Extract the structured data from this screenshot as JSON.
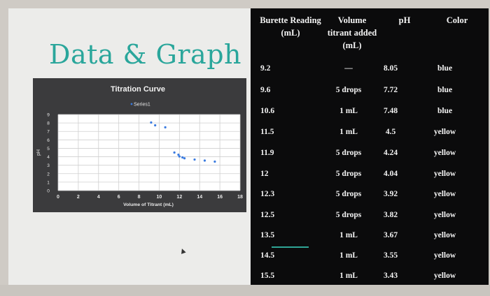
{
  "slide": {
    "title": "Data & Graph"
  },
  "table": {
    "headers": {
      "reading": [
        "Burette Reading",
        "(mL)"
      ],
      "volume": [
        "Volume",
        "titrant added",
        "(mL)"
      ],
      "ph": [
        "pH"
      ],
      "color": [
        "Color"
      ]
    },
    "rows": [
      {
        "reading": "9.2",
        "volume": "—",
        "ph": "8.05",
        "color": "blue"
      },
      {
        "reading": "9.6",
        "volume": "5 drops",
        "ph": "7.72",
        "color": "blue"
      },
      {
        "reading": "10.6",
        "volume": "1 mL",
        "ph": "7.48",
        "color": "blue"
      },
      {
        "reading": "11.5",
        "volume": "1 mL",
        "ph": "4.5",
        "color": "yellow"
      },
      {
        "reading": "11.9",
        "volume": "5 drops",
        "ph": "4.24",
        "color": "yellow"
      },
      {
        "reading": "12",
        "volume": "5 drops",
        "ph": "4.04",
        "color": "yellow"
      },
      {
        "reading": "12.3",
        "volume": "5 drops",
        "ph": "3.92",
        "color": "yellow"
      },
      {
        "reading": "12.5",
        "volume": "5 drops",
        "ph": "3.82",
        "color": "yellow"
      },
      {
        "reading": "13.5",
        "volume": "1 mL",
        "ph": "3.67",
        "color": "yellow"
      },
      {
        "reading": "14.5",
        "volume": "1 mL",
        "ph": "3.55",
        "color": "yellow"
      },
      {
        "reading": "15.5",
        "volume": "1 mL",
        "ph": "3.43",
        "color": "yellow"
      }
    ]
  },
  "chart_data": {
    "type": "scatter",
    "title": "Titration Curve",
    "xlabel": "Volume of Titrant (mL)",
    "ylabel": "pH",
    "xlim": [
      0,
      18
    ],
    "ylim": [
      0,
      9
    ],
    "xticks": [
      "0",
      "2",
      "4",
      "6",
      "8",
      "10",
      "12",
      "14",
      "16",
      "18"
    ],
    "yticks": [
      "0",
      "1",
      "2",
      "3",
      "4",
      "5",
      "6",
      "7",
      "8",
      "9"
    ],
    "grid": true,
    "legend_position": "top",
    "series": [
      {
        "name": "Series1",
        "color": "#3a7be0",
        "points": [
          [
            9.2,
            8.05
          ],
          [
            9.6,
            7.72
          ],
          [
            10.6,
            7.48
          ],
          [
            11.5,
            4.5
          ],
          [
            11.9,
            4.24
          ],
          [
            12,
            4.04
          ],
          [
            12.3,
            3.92
          ],
          [
            12.5,
            3.82
          ],
          [
            13.5,
            3.67
          ],
          [
            14.5,
            3.55
          ],
          [
            15.5,
            3.43
          ]
        ]
      }
    ]
  }
}
